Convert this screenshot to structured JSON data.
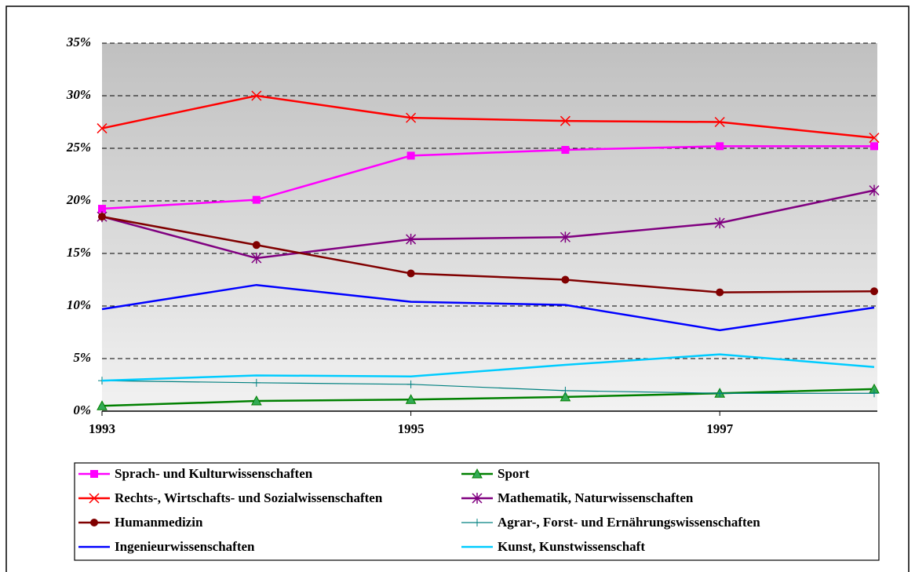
{
  "chart_data": {
    "type": "line",
    "x": [
      1993,
      1994,
      1995,
      1996,
      1997,
      1998
    ],
    "xlim": [
      1993,
      1998
    ],
    "xticks": [
      1993,
      1995,
      1997
    ],
    "ylim": [
      0,
      35
    ],
    "yticks": [
      {
        "value": 0,
        "label": "0%"
      },
      {
        "value": 5,
        "label": "5%"
      },
      {
        "value": 10,
        "label": "10%"
      },
      {
        "value": 15,
        "label": "15%"
      },
      {
        "value": 20,
        "label": "20%"
      },
      {
        "value": 25,
        "label": "25%"
      },
      {
        "value": 30,
        "label": "30%"
      },
      {
        "value": 35,
        "label": "35%"
      }
    ],
    "grid": true,
    "legend": "bottom",
    "series": [
      {
        "name": "Sprach- und Kulturwissenschaften",
        "color": "#ff00ff",
        "marker": "square",
        "values": [
          19.25,
          20.1,
          24.3,
          24.85,
          25.2,
          25.2
        ]
      },
      {
        "name": "Sport",
        "color": "#008000",
        "marker": "triangle",
        "values": [
          0.5,
          0.97,
          1.1,
          1.35,
          1.7,
          2.1
        ]
      },
      {
        "name": "Rechts-, Wirtschafts- und Sozialwissenschaften",
        "color": "#ff0000",
        "marker": "x",
        "values": [
          26.9,
          30.0,
          27.9,
          27.6,
          27.5,
          26.0
        ]
      },
      {
        "name": "Mathematik, Naturwissenschaften",
        "color": "#800080",
        "marker": "asterisk",
        "values": [
          18.5,
          14.55,
          16.35,
          16.55,
          17.9,
          21.0
        ]
      },
      {
        "name": "Humanmedizin",
        "color": "#800000",
        "marker": "circle",
        "values": [
          18.5,
          15.8,
          13.1,
          12.5,
          11.3,
          11.4
        ]
      },
      {
        "name": "Agrar-, Forst- und Ernährungswissenschaften",
        "color": "#008080",
        "marker": "plus",
        "values": [
          2.9,
          2.7,
          2.55,
          1.95,
          1.7,
          1.7
        ]
      },
      {
        "name": "Ingenieurwissenschaften",
        "color": "#0000ff",
        "marker": "none",
        "values": [
          9.7,
          12.0,
          10.4,
          10.1,
          7.7,
          9.85
        ]
      },
      {
        "name": "Kunst, Kunstwissenschaft",
        "color": "#00ccff",
        "marker": "none",
        "values": [
          2.9,
          3.4,
          3.3,
          4.4,
          5.4,
          4.2
        ]
      }
    ]
  }
}
